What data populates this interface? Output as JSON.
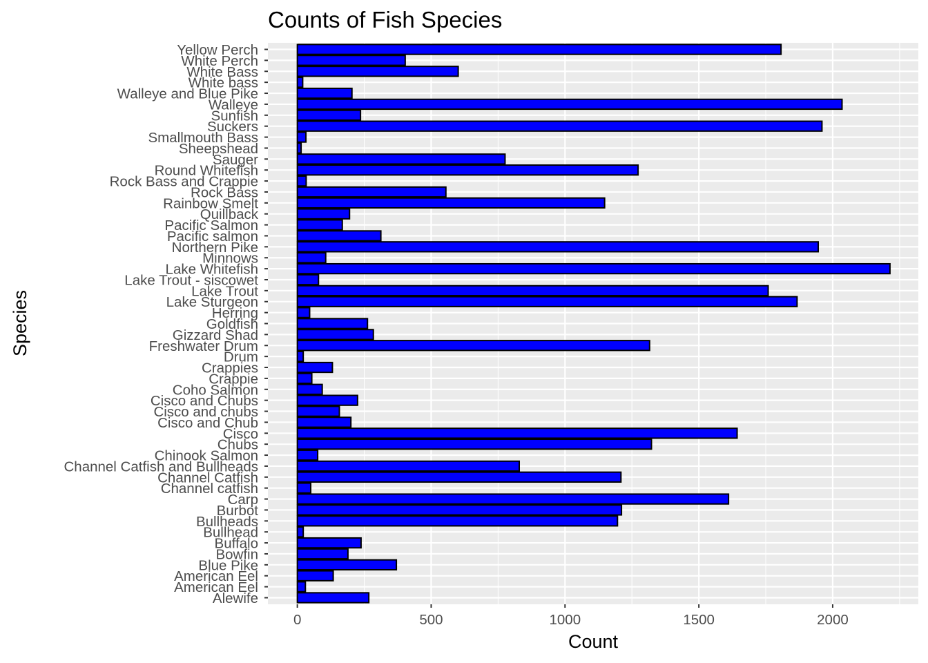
{
  "chart_data": {
    "type": "bar",
    "orientation": "horizontal",
    "title": "Counts of Fish Species",
    "xlabel": "Count",
    "ylabel": "Species",
    "xlim": [
      -110,
      2320
    ],
    "xticks": [
      0,
      500,
      1000,
      1500,
      2000
    ],
    "grid": true,
    "legend": "none",
    "colors": {
      "bar_fill": "#0000ff",
      "bar_stroke": "#000000",
      "panel_background": "#ebebeb",
      "grid_major": "#ffffff",
      "tick_label": "#4d4d4d"
    },
    "categories": [
      "Alewife",
      "American Eel",
      "American Eel",
      "Blue Pike",
      "Bowfin",
      "Buffalo",
      "Bullhead",
      "Bullheads",
      "Burbot",
      "Carp",
      "Channel catfish",
      "Channel Catfish",
      "Channel Catfish and Bullheads",
      "Chinook Salmon",
      "Chubs",
      "Cisco",
      "Cisco and Chub",
      "Cisco and chubs",
      "Cisco and Chubs",
      "Coho Salmon",
      "Crappie",
      "Crappies",
      "Drum",
      "Freshwater Drum",
      "Gizzard Shad",
      "Goldfish",
      "Herring",
      "Lake Sturgeon",
      "Lake Trout",
      "Lake Trout - siscowet",
      "Lake Whitefish",
      "Minnows",
      "Northern Pike",
      "Pacific salmon",
      "Pacific Salmon",
      "Quillback",
      "Rainbow Smelt",
      "Rock Bass",
      "Rock Bass and Crappie",
      "Round Whitefish",
      "Sauger",
      "Sheepshead",
      "Smallmouth Bass",
      "Suckers",
      "Sunfish",
      "Walleye",
      "Walleye and Blue Pike",
      "White bass",
      "White Bass",
      "White Perch",
      "Yellow Perch"
    ],
    "values": [
      267,
      30,
      134,
      370,
      189,
      238,
      22,
      1196,
      1211,
      1611,
      50,
      1209,
      829,
      76,
      1323,
      1643,
      200,
      157,
      225,
      93,
      54,
      131,
      22,
      1316,
      284,
      262,
      46,
      1867,
      1759,
      79,
      2214,
      106,
      1946,
      312,
      168,
      195,
      1148,
      555,
      33,
      1273,
      776,
      14,
      32,
      1960,
      236,
      2035,
      204,
      20,
      601,
      403,
      1807
    ]
  }
}
